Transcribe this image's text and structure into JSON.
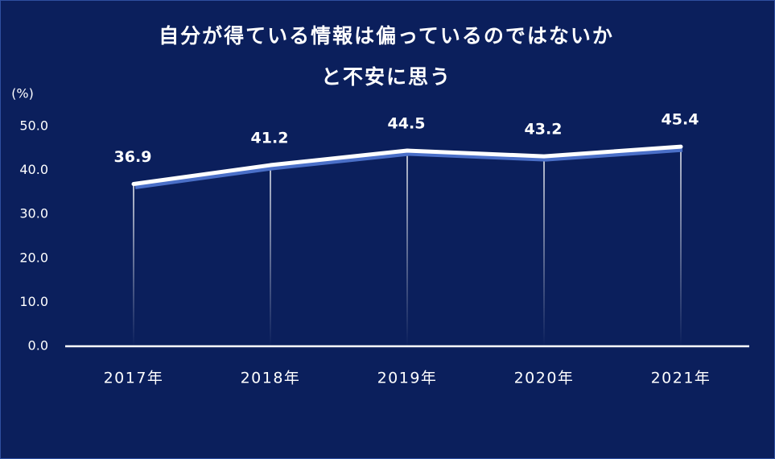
{
  "chart_data": {
    "type": "line",
    "title": [
      "自分が得ている情報は偏っているのではないか",
      "と不安に思う"
    ],
    "y_unit": "(%)",
    "categories": [
      "2017年",
      "2018年",
      "2019年",
      "2020年",
      "2021年"
    ],
    "series": [
      {
        "color": "#ffffff",
        "values": [
          36.9,
          41.2,
          44.5,
          43.2,
          45.4
        ]
      }
    ],
    "ylim": [
      0,
      50
    ],
    "yticks": [
      {
        "value": 0,
        "label": "0.0"
      },
      {
        "value": 10,
        "label": "10.0"
      },
      {
        "value": 20,
        "label": "20.0"
      },
      {
        "value": 30,
        "label": "30.0"
      },
      {
        "value": 40,
        "label": "40.0"
      },
      {
        "value": 50,
        "label": "50.0"
      }
    ]
  }
}
